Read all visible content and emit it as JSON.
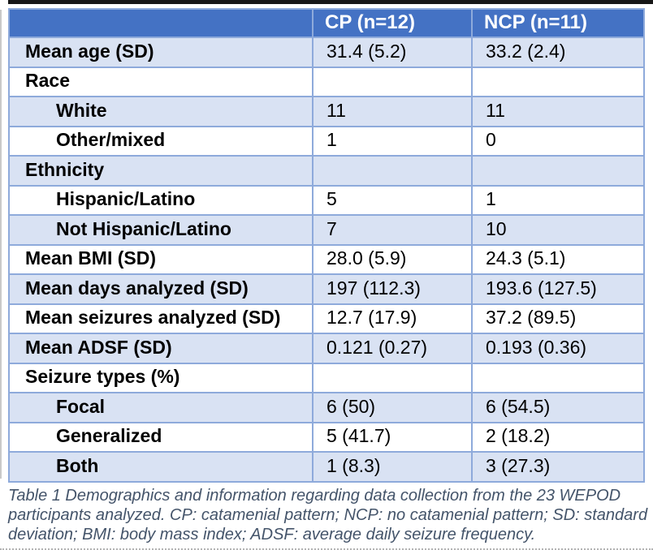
{
  "table": {
    "columns": [
      "",
      "CP (n=12)",
      "NCP (n=11)"
    ],
    "rows": [
      {
        "label": "Mean age (SD)",
        "indent": false,
        "shade": true,
        "cp": "31.4 (5.2)",
        "ncp": "33.2 (2.4)"
      },
      {
        "label": "Race",
        "indent": false,
        "shade": false,
        "cp": "",
        "ncp": ""
      },
      {
        "label": "White",
        "indent": true,
        "shade": true,
        "cp": "11",
        "ncp": "11"
      },
      {
        "label": "Other/mixed",
        "indent": true,
        "shade": false,
        "cp": "1",
        "ncp": "0"
      },
      {
        "label": "Ethnicity",
        "indent": false,
        "shade": true,
        "cp": "",
        "ncp": ""
      },
      {
        "label": "Hispanic/Latino",
        "indent": true,
        "shade": false,
        "cp": "5",
        "ncp": "1"
      },
      {
        "label": "Not Hispanic/Latino",
        "indent": true,
        "shade": true,
        "cp": "7",
        "ncp": "10"
      },
      {
        "label": "Mean BMI (SD)",
        "indent": false,
        "shade": false,
        "cp": "28.0 (5.9)",
        "ncp": "24.3 (5.1)"
      },
      {
        "label": "Mean days analyzed (SD)",
        "indent": false,
        "shade": true,
        "cp": "197 (112.3)",
        "ncp": "193.6 (127.5)"
      },
      {
        "label": "Mean seizures analyzed (SD)",
        "indent": false,
        "shade": false,
        "cp": "12.7 (17.9)",
        "ncp": "37.2 (89.5)"
      },
      {
        "label": "Mean ADSF (SD)",
        "indent": false,
        "shade": true,
        "cp": "0.121 (0.27)",
        "ncp": "0.193 (0.36)"
      },
      {
        "label": "Seizure types (%)",
        "indent": false,
        "shade": false,
        "cp": "",
        "ncp": ""
      },
      {
        "label": "Focal",
        "indent": true,
        "shade": true,
        "cp": "6 (50)",
        "ncp": "6 (54.5)"
      },
      {
        "label": "Generalized",
        "indent": true,
        "shade": false,
        "cp": "5 (41.7)",
        "ncp": "2 (18.2)"
      },
      {
        "label": "Both",
        "indent": true,
        "shade": true,
        "cp": "1 (8.3)",
        "ncp": "3 (27.3)"
      }
    ]
  },
  "caption": "Table 1 Demographics and information regarding data collection from the 23 WEPOD participants analyzed. CP: catamenial pattern; NCP: no catamenial pattern; SD: standard deviation; BMI: body mass index; ADSF: average daily seizure frequency.",
  "colors": {
    "header_bg": "#4472C4",
    "band_bg": "#D9E2F3",
    "border": "#8EAADB",
    "header_text": "#FFFFFF",
    "body_text": "#000000",
    "caption_text": "#44546A"
  }
}
